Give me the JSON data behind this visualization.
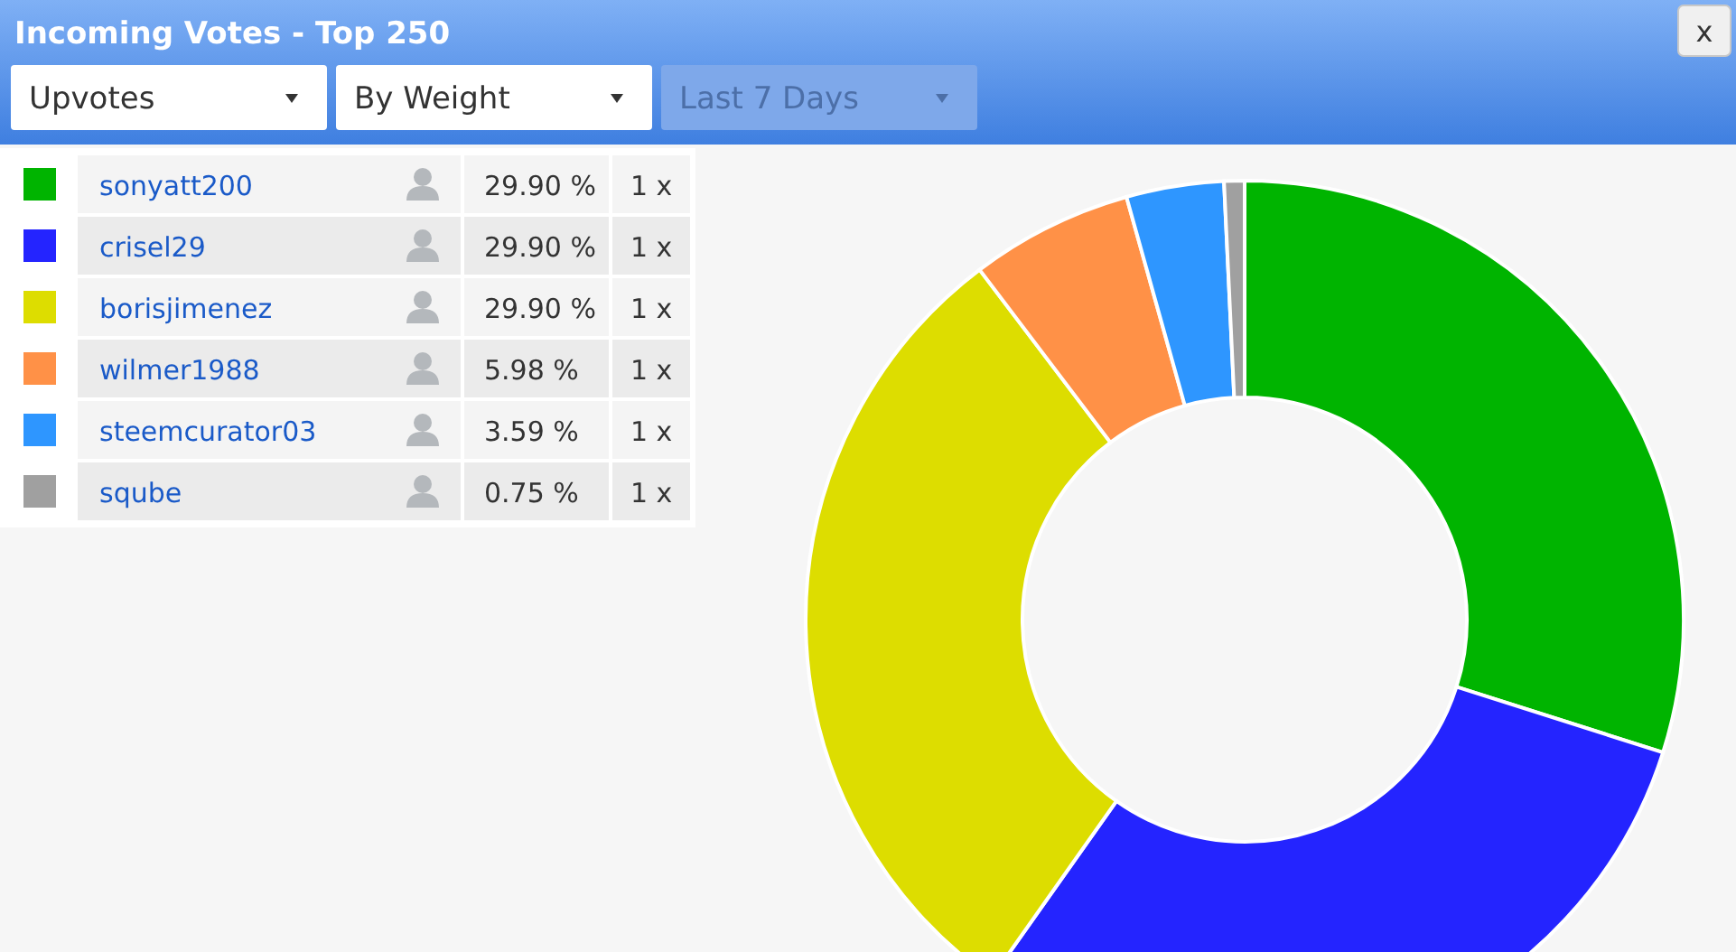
{
  "chart_data": {
    "type": "donut",
    "title": "Incoming Votes - Top 250",
    "categories": [
      "sonyatt200",
      "crisel29",
      "borisjimenez",
      "wilmer1988",
      "steemcurator03",
      "sqube"
    ],
    "values": [
      29.9,
      29.9,
      29.9,
      5.98,
      3.59,
      0.75
    ],
    "colors": [
      "#00b400",
      "#2424ff",
      "#dddd00",
      "#ff9147",
      "#2e96ff",
      "#a0a0a0"
    ],
    "value_labels": [
      "29.90 %",
      "29.90 %",
      "29.90 %",
      "5.98 %",
      "3.59 %",
      "0.75 %"
    ],
    "legend": "top left",
    "annotations": [
      "Upvotes",
      "By Weight",
      "Last 7 Days",
      "x",
      "1 x",
      "1 x",
      "1 x",
      "1 x",
      "1 x",
      "1 x"
    ]
  }
}
